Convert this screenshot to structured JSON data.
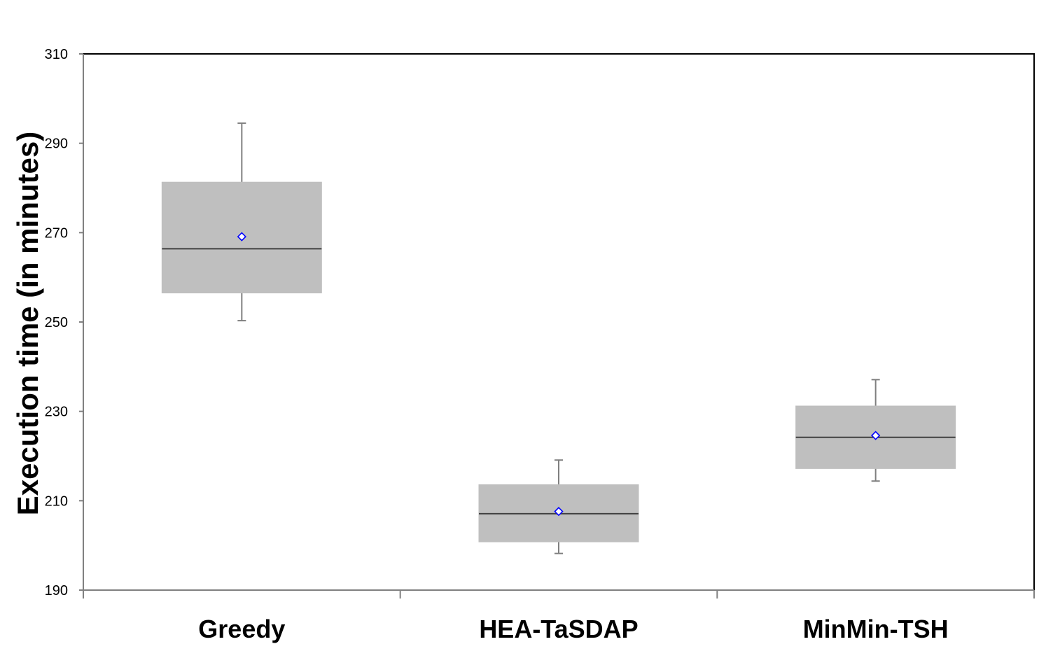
{
  "chart_data": {
    "type": "box",
    "title": "",
    "xlabel": "",
    "ylabel": "Execution time (in minutes)",
    "ylim": [
      190,
      310
    ],
    "yticks": [
      190,
      210,
      230,
      250,
      270,
      290,
      310
    ],
    "categories": [
      "Greedy",
      "HEA-TaSDAP",
      "MinMin-TSH"
    ],
    "boxes": [
      {
        "category": "Greedy",
        "whisker_low": 250.3,
        "q1": 256.5,
        "median": 266.4,
        "q3": 281.3,
        "whisker_high": 294.5,
        "mean": 269.1
      },
      {
        "category": "HEA-TaSDAP",
        "whisker_low": 198.2,
        "q1": 200.8,
        "median": 207.1,
        "q3": 213.6,
        "whisker_high": 219.1,
        "mean": 207.6
      },
      {
        "category": "MinMin-TSH",
        "whisker_low": 214.4,
        "q1": 217.2,
        "median": 224.2,
        "q3": 231.2,
        "whisker_high": 237.1,
        "mean": 224.6
      }
    ],
    "grid": false,
    "legend": "none",
    "colors": {
      "box_fill": "#bfbfbf",
      "median_line": "#404040",
      "whisker": "#7f7f7f",
      "mean_marker_stroke": "#0000ff",
      "mean_marker_fill": "#ffffff",
      "frame": "#000000",
      "axis": "#808080"
    }
  }
}
